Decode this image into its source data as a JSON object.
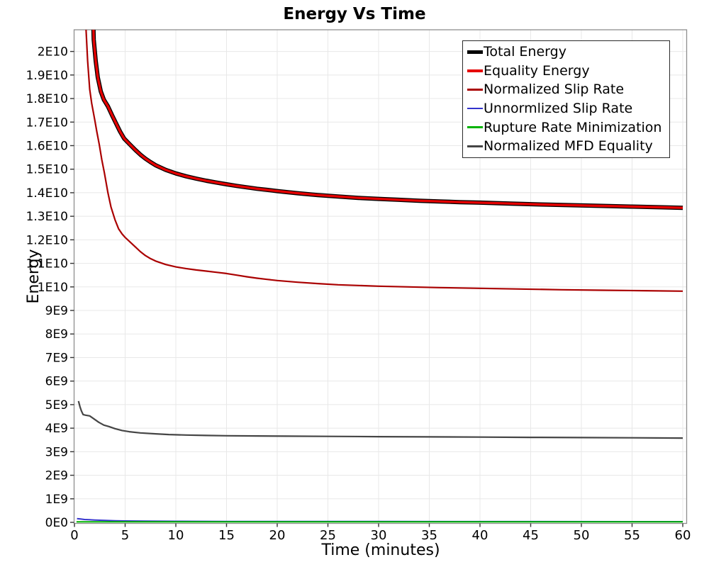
{
  "chart_data": {
    "type": "line",
    "title": "Energy Vs Time",
    "xlabel": "Time (minutes)",
    "ylabel": "Energy",
    "xlim": [
      0,
      60.35
    ],
    "ylim_e9": [
      0,
      20.92
    ],
    "grid": true,
    "legend_position": "top-right-inside",
    "axis_colors": {
      "grid": "#e8e8e8",
      "border": "#8f8f8f",
      "tick": "#333333"
    },
    "x_ticks": [
      0,
      5,
      10,
      15,
      20,
      25,
      30,
      35,
      40,
      45,
      50,
      55,
      60
    ],
    "y_ticks": [
      {
        "v": 0,
        "label": "0E0"
      },
      {
        "v": 1,
        "label": "1E9"
      },
      {
        "v": 2,
        "label": "2E9"
      },
      {
        "v": 3,
        "label": "3E9"
      },
      {
        "v": 4,
        "label": "4E9"
      },
      {
        "v": 5,
        "label": "5E9"
      },
      {
        "v": 6,
        "label": "6E9"
      },
      {
        "v": 7,
        "label": "7E9"
      },
      {
        "v": 8,
        "label": "8E9"
      },
      {
        "v": 9,
        "label": "9E9"
      },
      {
        "v": 10,
        "label": "1E10"
      },
      {
        "v": 11,
        "label": "1.1E10"
      },
      {
        "v": 12,
        "label": "1.2E10"
      },
      {
        "v": 13,
        "label": "1.3E10"
      },
      {
        "v": 14,
        "label": "1.4E10"
      },
      {
        "v": 15,
        "label": "1.5E10"
      },
      {
        "v": 16,
        "label": "1.6E10"
      },
      {
        "v": 17,
        "label": "1.7E10"
      },
      {
        "v": 18,
        "label": "1.8E10"
      },
      {
        "v": 19,
        "label": "1.9E10"
      },
      {
        "v": 20,
        "label": "2E10"
      }
    ],
    "values_unit": "1E9",
    "series": [
      {
        "name": "Total Energy",
        "color": "#000000",
        "width": 6,
        "legend_lw": 5,
        "points": [
          [
            1.75,
            23
          ],
          [
            1.9,
            20.5
          ],
          [
            2.1,
            19.6
          ],
          [
            2.3,
            18.9
          ],
          [
            2.6,
            18.3
          ],
          [
            2.9,
            17.95
          ],
          [
            3.3,
            17.67
          ],
          [
            3.7,
            17.3
          ],
          [
            4.1,
            16.95
          ],
          [
            4.5,
            16.6
          ],
          [
            4.9,
            16.3
          ],
          [
            5.4,
            16.08
          ],
          [
            6,
            15.82
          ],
          [
            6.5,
            15.62
          ],
          [
            7,
            15.45
          ],
          [
            7.5,
            15.3
          ],
          [
            8,
            15.17
          ],
          [
            9,
            14.97
          ],
          [
            10,
            14.82
          ],
          [
            11,
            14.7
          ],
          [
            12,
            14.6
          ],
          [
            13,
            14.51
          ],
          [
            14,
            14.43
          ],
          [
            15,
            14.36
          ],
          [
            16,
            14.29
          ],
          [
            17,
            14.23
          ],
          [
            18,
            14.17
          ],
          [
            19,
            14.12
          ],
          [
            20,
            14.07
          ],
          [
            22,
            13.98
          ],
          [
            24,
            13.9
          ],
          [
            26,
            13.84
          ],
          [
            28,
            13.78
          ],
          [
            30,
            13.74
          ],
          [
            32,
            13.7
          ],
          [
            34,
            13.66
          ],
          [
            36,
            13.63
          ],
          [
            38,
            13.6
          ],
          [
            40,
            13.58
          ],
          [
            43,
            13.54
          ],
          [
            46,
            13.5
          ],
          [
            49,
            13.47
          ],
          [
            52,
            13.44
          ],
          [
            55,
            13.41
          ],
          [
            58,
            13.38
          ],
          [
            60,
            13.36
          ]
        ]
      },
      {
        "name": "Equality Energy",
        "color": "#e60000",
        "width": 3.4,
        "legend_lw": 4,
        "points": [
          [
            1.75,
            23
          ],
          [
            1.9,
            20.5
          ],
          [
            2.1,
            19.6
          ],
          [
            2.3,
            18.9
          ],
          [
            2.6,
            18.3
          ],
          [
            2.9,
            17.95
          ],
          [
            3.3,
            17.67
          ],
          [
            3.7,
            17.3
          ],
          [
            4.1,
            16.95
          ],
          [
            4.5,
            16.6
          ],
          [
            4.9,
            16.3
          ],
          [
            5.4,
            16.08
          ],
          [
            6,
            15.82
          ],
          [
            6.5,
            15.62
          ],
          [
            7,
            15.45
          ],
          [
            7.5,
            15.3
          ],
          [
            8,
            15.17
          ],
          [
            9,
            14.97
          ],
          [
            10,
            14.82
          ],
          [
            11,
            14.7
          ],
          [
            12,
            14.6
          ],
          [
            13,
            14.51
          ],
          [
            14,
            14.43
          ],
          [
            15,
            14.36
          ],
          [
            16,
            14.29
          ],
          [
            17,
            14.23
          ],
          [
            18,
            14.17
          ],
          [
            19,
            14.12
          ],
          [
            20,
            14.07
          ],
          [
            22,
            13.98
          ],
          [
            24,
            13.9
          ],
          [
            26,
            13.84
          ],
          [
            28,
            13.78
          ],
          [
            30,
            13.74
          ],
          [
            32,
            13.7
          ],
          [
            34,
            13.66
          ],
          [
            36,
            13.63
          ],
          [
            38,
            13.6
          ],
          [
            40,
            13.58
          ],
          [
            43,
            13.54
          ],
          [
            46,
            13.5
          ],
          [
            49,
            13.47
          ],
          [
            52,
            13.44
          ],
          [
            55,
            13.41
          ],
          [
            58,
            13.38
          ],
          [
            60,
            13.36
          ]
        ]
      },
      {
        "name": "Normalized Slip Rate",
        "color": "#aa0000",
        "width": 2.2,
        "legend_lw": 2.5,
        "points": [
          [
            1.0,
            23
          ],
          [
            1.15,
            20.9
          ],
          [
            1.3,
            19.6
          ],
          [
            1.5,
            18.4
          ],
          [
            1.7,
            17.8
          ],
          [
            2.0,
            17.1
          ],
          [
            2.2,
            16.6
          ],
          [
            2.45,
            16.05
          ],
          [
            2.7,
            15.4
          ],
          [
            2.95,
            14.85
          ],
          [
            3.3,
            14.0
          ],
          [
            3.6,
            13.4
          ],
          [
            4.0,
            12.85
          ],
          [
            4.35,
            12.47
          ],
          [
            4.7,
            12.25
          ],
          [
            5,
            12.1
          ],
          [
            5.5,
            11.9
          ],
          [
            6,
            11.7
          ],
          [
            6.5,
            11.5
          ],
          [
            7,
            11.33
          ],
          [
            7.5,
            11.2
          ],
          [
            8,
            11.1
          ],
          [
            9,
            10.95
          ],
          [
            10,
            10.85
          ],
          [
            11,
            10.78
          ],
          [
            12,
            10.72
          ],
          [
            13,
            10.67
          ],
          [
            14,
            10.62
          ],
          [
            15,
            10.57
          ],
          [
            16,
            10.5
          ],
          [
            17,
            10.43
          ],
          [
            18,
            10.37
          ],
          [
            19,
            10.32
          ],
          [
            20,
            10.27
          ],
          [
            22,
            10.2
          ],
          [
            24,
            10.14
          ],
          [
            26,
            10.09
          ],
          [
            28,
            10.06
          ],
          [
            30,
            10.03
          ],
          [
            33,
            10.0
          ],
          [
            36,
            9.97
          ],
          [
            40,
            9.94
          ],
          [
            44,
            9.91
          ],
          [
            48,
            9.88
          ],
          [
            52,
            9.86
          ],
          [
            56,
            9.84
          ],
          [
            60,
            9.82
          ]
        ]
      },
      {
        "name": "Unnormlized Slip Rate",
        "color": "#3333cc",
        "width": 2,
        "legend_lw": 2.5,
        "points": [
          [
            0.25,
            0.16
          ],
          [
            0.6,
            0.14
          ],
          [
            1,
            0.12
          ],
          [
            2,
            0.1
          ],
          [
            3,
            0.085
          ],
          [
            4,
            0.07
          ],
          [
            5,
            0.06
          ],
          [
            7,
            0.05
          ],
          [
            10,
            0.045
          ],
          [
            15,
            0.04
          ],
          [
            20,
            0.038
          ],
          [
            30,
            0.035
          ],
          [
            45,
            0.032
          ],
          [
            60,
            0.03
          ]
        ]
      },
      {
        "name": "Rupture Rate Minimization",
        "color": "#00b300",
        "width": 2,
        "legend_lw": 2.5,
        "points": [
          [
            0.2,
            0.025
          ],
          [
            10,
            0.02
          ],
          [
            60,
            0.02
          ]
        ]
      },
      {
        "name": "Normalized MFD Equality",
        "color": "#454545",
        "width": 2.2,
        "legend_lw": 2.5,
        "points": [
          [
            0.4,
            5.15
          ],
          [
            0.55,
            4.9
          ],
          [
            0.7,
            4.72
          ],
          [
            0.85,
            4.58
          ],
          [
            1.1,
            4.55
          ],
          [
            1.5,
            4.52
          ],
          [
            1.9,
            4.4
          ],
          [
            2.4,
            4.25
          ],
          [
            2.9,
            4.13
          ],
          [
            3.4,
            4.07
          ],
          [
            4,
            3.98
          ],
          [
            4.7,
            3.9
          ],
          [
            5.4,
            3.85
          ],
          [
            6.5,
            3.8
          ],
          [
            8,
            3.76
          ],
          [
            9.3,
            3.73
          ],
          [
            11,
            3.71
          ],
          [
            13,
            3.69
          ],
          [
            15,
            3.68
          ],
          [
            18,
            3.67
          ],
          [
            21,
            3.66
          ],
          [
            25,
            3.65
          ],
          [
            30,
            3.64
          ],
          [
            35,
            3.63
          ],
          [
            40,
            3.62
          ],
          [
            45,
            3.61
          ],
          [
            50,
            3.6
          ],
          [
            55,
            3.59
          ],
          [
            60,
            3.58
          ]
        ]
      }
    ],
    "draw_order": [
      5,
      3,
      4,
      2,
      0,
      1
    ]
  }
}
